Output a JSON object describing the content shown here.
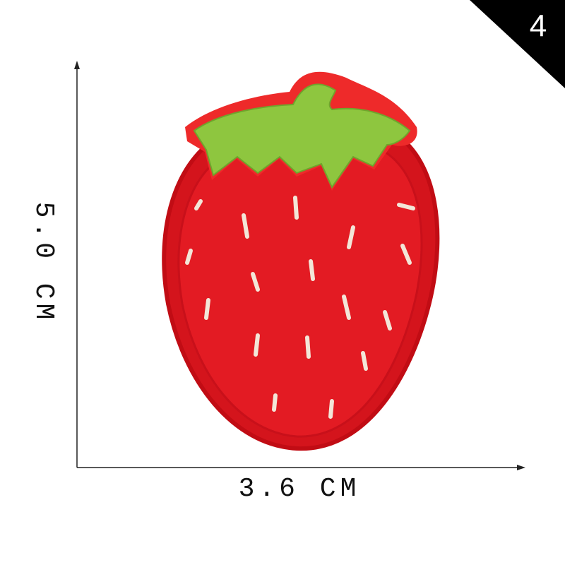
{
  "badge": "4",
  "height_label": "5.0 CM",
  "width_label": "3.6 CM"
}
